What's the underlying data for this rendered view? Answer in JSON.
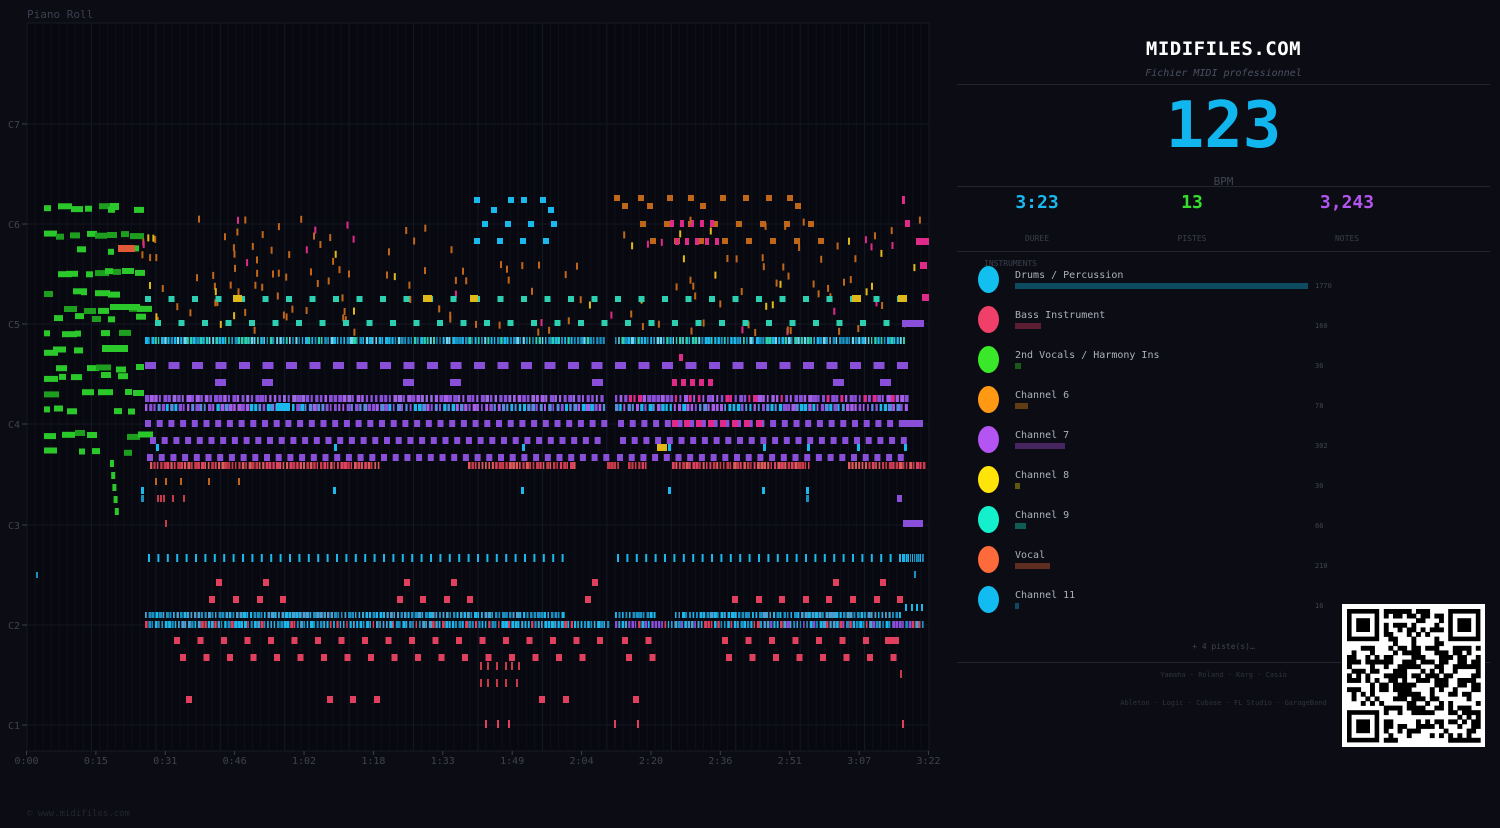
{
  "piano_roll": {
    "title": "Piano Roll",
    "copyright": "© www.midifiles.com",
    "octave_labels": [
      "C7",
      "C6",
      "C5",
      "C4",
      "C3",
      "C2",
      "C1"
    ],
    "time_labels": [
      "0:00",
      "0:15",
      "0:31",
      "0:46",
      "1:02",
      "1:18",
      "1:33",
      "1:49",
      "2:04",
      "2:20",
      "2:36",
      "2:51",
      "3:07",
      "3:22"
    ]
  },
  "panel": {
    "brand": "MIDIFILES.COM",
    "subtitle": "Fichier MIDI professionnel",
    "bpm": "123",
    "bpm_label": "BPM",
    "stats": [
      {
        "value": "3:23",
        "label": "DUREE",
        "color": "#19b9ef"
      },
      {
        "value": "13",
        "label": "PISTES",
        "color": "#34e02c"
      },
      {
        "value": "3,243",
        "label": "NOTES",
        "color": "#b455ef"
      }
    ],
    "instruments_heading": "INSTRUMENTS",
    "instruments": [
      {
        "name": "Drums / Percussion",
        "count": "1770",
        "color": "#12c0f0",
        "notes": 1770
      },
      {
        "name": "Bass Instrument",
        "count": "160",
        "color": "#f0406a",
        "notes": 160
      },
      {
        "name": "2nd Vocals / Harmony Ins",
        "count": "36",
        "color": "#3ae82a",
        "notes": 36
      },
      {
        "name": "Channel 6",
        "count": "78",
        "color": "#ff9812",
        "notes": 78
      },
      {
        "name": "Channel 7",
        "count": "302",
        "color": "#b454f2",
        "notes": 302
      },
      {
        "name": "Channel 8",
        "count": "30",
        "color": "#ffe40a",
        "notes": 30
      },
      {
        "name": "Channel 9",
        "count": "66",
        "color": "#14f0cc",
        "notes": 66
      },
      {
        "name": "Vocal",
        "count": "210",
        "color": "#ff6a3a",
        "notes": 210
      },
      {
        "name": "Channel 11",
        "count": "16",
        "color": "#12bcf0",
        "notes": 16
      }
    ],
    "more_tracks": "+ 4 piste(s)…",
    "brands_line1": "Yamaha · Roland · Korg · Casio",
    "brands_line2": "Ableton · Logic · Cubase · FL Studio · GarageBand"
  }
}
